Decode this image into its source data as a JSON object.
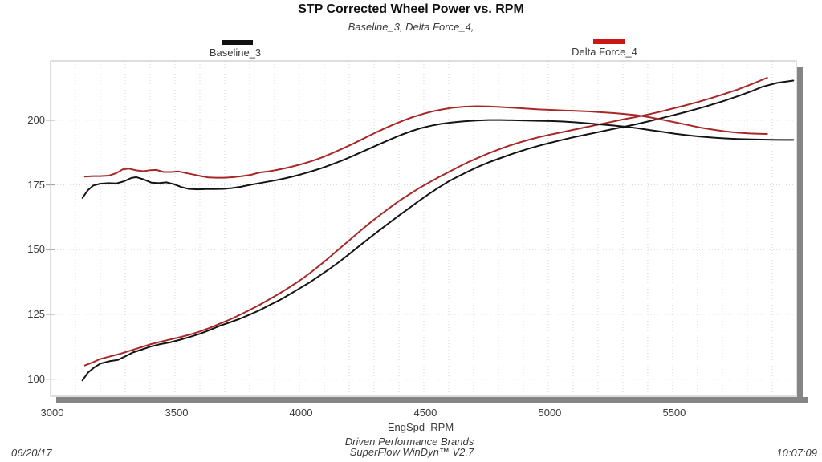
{
  "title": "STP Corrected Wheel Power vs. RPM",
  "subtitle": "Baseline_3, Delta Force_4,",
  "legend": [
    {
      "label": "Baseline_3",
      "color": "#111111"
    },
    {
      "label": "Delta Force_4",
      "color": "#cc1616"
    }
  ],
  "x_axis_label": "EngSpd  RPM",
  "footer": {
    "date": "06/20/17",
    "brand": "Driven Performance Brands",
    "software": "SuperFlow WinDyn™ V2.7",
    "time": "10:07:09"
  },
  "colors": {
    "baseline_curve": "#141414",
    "delta_curve": "#a82828",
    "grid": "#d4d4d4",
    "plot_border": "#bdbdbd",
    "scrollbar": "#858585",
    "tick": "#9a9a9a"
  },
  "chart_data": {
    "type": "line",
    "title": "STP Corrected Wheel Power vs. RPM",
    "subtitle": "Baseline_3, Delta Force_4,",
    "xlabel": "EngSpd  RPM",
    "ylabel": "",
    "xlim": [
      3000,
      5997
    ],
    "ylim": [
      93.4,
      222.9
    ],
    "x_ticks": [
      3000,
      3500,
      4000,
      4500,
      5000,
      5500
    ],
    "y_ticks": [
      100,
      125,
      150,
      175,
      200
    ],
    "x_minor_grid_step": 100,
    "grid": "dotted",
    "legend_position": "top",
    "series": [
      {
        "name": "Baseline_3 (lower trace, power)",
        "color": "#141414",
        "points": [
          [
            3128,
            99.5
          ],
          [
            3150,
            102.5
          ],
          [
            3175,
            104.5
          ],
          [
            3200,
            106
          ],
          [
            3240,
            107
          ],
          [
            3270,
            107.4
          ],
          [
            3300,
            108.8
          ],
          [
            3330,
            110.3
          ],
          [
            3360,
            111.2
          ],
          [
            3400,
            112.5
          ],
          [
            3440,
            113.5
          ],
          [
            3480,
            114.2
          ],
          [
            3520,
            115.2
          ],
          [
            3560,
            116.3
          ],
          [
            3600,
            117.5
          ],
          [
            3640,
            119
          ],
          [
            3680,
            120.6
          ],
          [
            3720,
            121.9
          ],
          [
            3760,
            123.3
          ],
          [
            3800,
            124.9
          ],
          [
            3840,
            126.6
          ],
          [
            3880,
            128.6
          ],
          [
            3920,
            130.5
          ],
          [
            3960,
            132.7
          ],
          [
            4000,
            135
          ],
          [
            4040,
            137.3
          ],
          [
            4080,
            139.9
          ],
          [
            4120,
            142.5
          ],
          [
            4160,
            145.3
          ],
          [
            4200,
            148.3
          ],
          [
            4240,
            151.4
          ],
          [
            4280,
            154.4
          ],
          [
            4320,
            157.4
          ],
          [
            4360,
            160.3
          ],
          [
            4400,
            163.2
          ],
          [
            4440,
            166
          ],
          [
            4480,
            168.8
          ],
          [
            4520,
            171.5
          ],
          [
            4560,
            174
          ],
          [
            4600,
            176.4
          ],
          [
            4640,
            178.4
          ],
          [
            4680,
            180.3
          ],
          [
            4720,
            182.1
          ],
          [
            4760,
            183.7
          ],
          [
            4800,
            185.1
          ],
          [
            4840,
            186.5
          ],
          [
            4880,
            187.8
          ],
          [
            4920,
            189
          ],
          [
            4960,
            190.1
          ],
          [
            5000,
            191.1
          ],
          [
            5050,
            192.3
          ],
          [
            5100,
            193.4
          ],
          [
            5150,
            194.4
          ],
          [
            5200,
            195.4
          ],
          [
            5250,
            196.4
          ],
          [
            5300,
            197.4
          ],
          [
            5350,
            198.4
          ],
          [
            5400,
            199.5
          ],
          [
            5450,
            200.7
          ],
          [
            5500,
            201.9
          ],
          [
            5550,
            203.1
          ],
          [
            5600,
            204.4
          ],
          [
            5650,
            205.8
          ],
          [
            5700,
            207.3
          ],
          [
            5760,
            209.2
          ],
          [
            5820,
            211.3
          ],
          [
            5860,
            212.9
          ],
          [
            5920,
            214.4
          ],
          [
            5985,
            215.3
          ]
        ]
      },
      {
        "name": "Delta Force_4 (lower trace, power)",
        "color": "#a82828",
        "points": [
          [
            3138,
            105.3
          ],
          [
            3170,
            106.5
          ],
          [
            3200,
            107.8
          ],
          [
            3240,
            108.8
          ],
          [
            3280,
            109.8
          ],
          [
            3320,
            111
          ],
          [
            3360,
            112.2
          ],
          [
            3400,
            113.4
          ],
          [
            3440,
            114.4
          ],
          [
            3480,
            115.3
          ],
          [
            3520,
            116.2
          ],
          [
            3560,
            117.2
          ],
          [
            3600,
            118.4
          ],
          [
            3640,
            119.8
          ],
          [
            3680,
            121.4
          ],
          [
            3720,
            123
          ],
          [
            3760,
            124.8
          ],
          [
            3800,
            126.7
          ],
          [
            3840,
            128.7
          ],
          [
            3880,
            130.9
          ],
          [
            3920,
            133.1
          ],
          [
            3960,
            135.5
          ],
          [
            4000,
            138
          ],
          [
            4040,
            140.8
          ],
          [
            4080,
            143.8
          ],
          [
            4120,
            147
          ],
          [
            4160,
            150.3
          ],
          [
            4200,
            153.6
          ],
          [
            4240,
            156.9
          ],
          [
            4280,
            160.1
          ],
          [
            4320,
            163.1
          ],
          [
            4360,
            166
          ],
          [
            4400,
            168.8
          ],
          [
            4440,
            171.3
          ],
          [
            4480,
            173.7
          ],
          [
            4520,
            175.9
          ],
          [
            4560,
            178
          ],
          [
            4600,
            180
          ],
          [
            4640,
            182
          ],
          [
            4680,
            183.9
          ],
          [
            4720,
            185.6
          ],
          [
            4760,
            187.2
          ],
          [
            4800,
            188.7
          ],
          [
            4840,
            190.1
          ],
          [
            4880,
            191.3
          ],
          [
            4920,
            192.4
          ],
          [
            4960,
            193.4
          ],
          [
            5000,
            194.3
          ],
          [
            5050,
            195.3
          ],
          [
            5100,
            196.3
          ],
          [
            5150,
            197.3
          ],
          [
            5200,
            198.3
          ],
          [
            5250,
            199.3
          ],
          [
            5300,
            200.3
          ],
          [
            5350,
            201.2
          ],
          [
            5400,
            202.2
          ],
          [
            5450,
            203.3
          ],
          [
            5500,
            204.5
          ],
          [
            5550,
            205.7
          ],
          [
            5600,
            207
          ],
          [
            5650,
            208.4
          ],
          [
            5700,
            209.9
          ],
          [
            5760,
            211.8
          ],
          [
            5820,
            214
          ],
          [
            5880,
            216.4
          ]
        ]
      },
      {
        "name": "Baseline_3 (upper trace)",
        "color": "#141414",
        "points": [
          [
            3128,
            170
          ],
          [
            3150,
            173
          ],
          [
            3172,
            174.8
          ],
          [
            3200,
            175.5
          ],
          [
            3235,
            175.7
          ],
          [
            3265,
            175.6
          ],
          [
            3295,
            176.4
          ],
          [
            3325,
            177.7
          ],
          [
            3345,
            178
          ],
          [
            3375,
            177.1
          ],
          [
            3405,
            175.9
          ],
          [
            3435,
            175.7
          ],
          [
            3465,
            176
          ],
          [
            3495,
            175.3
          ],
          [
            3525,
            174.2
          ],
          [
            3555,
            173.5
          ],
          [
            3590,
            173.3
          ],
          [
            3625,
            173.4
          ],
          [
            3660,
            173.4
          ],
          [
            3695,
            173.5
          ],
          [
            3730,
            173.8
          ],
          [
            3765,
            174.3
          ],
          [
            3800,
            175
          ],
          [
            3835,
            175.6
          ],
          [
            3870,
            176.2
          ],
          [
            3905,
            176.8
          ],
          [
            3940,
            177.5
          ],
          [
            3975,
            178.3
          ],
          [
            4010,
            179.2
          ],
          [
            4050,
            180.3
          ],
          [
            4090,
            181.5
          ],
          [
            4130,
            182.9
          ],
          [
            4170,
            184.4
          ],
          [
            4210,
            186
          ],
          [
            4250,
            187.7
          ],
          [
            4290,
            189.4
          ],
          [
            4330,
            191.1
          ],
          [
            4370,
            192.8
          ],
          [
            4410,
            194.4
          ],
          [
            4450,
            195.8
          ],
          [
            4490,
            197
          ],
          [
            4530,
            197.9
          ],
          [
            4570,
            198.6
          ],
          [
            4610,
            199.1
          ],
          [
            4660,
            199.6
          ],
          [
            4710,
            199.9
          ],
          [
            4760,
            200.1
          ],
          [
            4810,
            200.1
          ],
          [
            4860,
            200
          ],
          [
            4910,
            199.9
          ],
          [
            4960,
            199.8
          ],
          [
            5010,
            199.7
          ],
          [
            5060,
            199.5
          ],
          [
            5110,
            199.2
          ],
          [
            5160,
            198.8
          ],
          [
            5210,
            198.4
          ],
          [
            5260,
            198
          ],
          [
            5310,
            197.5
          ],
          [
            5360,
            196.9
          ],
          [
            5410,
            196.2
          ],
          [
            5460,
            195.5
          ],
          [
            5510,
            194.8
          ],
          [
            5560,
            194.2
          ],
          [
            5610,
            193.7
          ],
          [
            5660,
            193.3
          ],
          [
            5710,
            193
          ],
          [
            5760,
            192.8
          ],
          [
            5820,
            192.6
          ],
          [
            5880,
            192.5
          ],
          [
            5930,
            192.4
          ],
          [
            5985,
            192.4
          ]
        ]
      },
      {
        "name": "Delta Force_4 (upper trace)",
        "color": "#a82828",
        "points": [
          [
            3138,
            178.2
          ],
          [
            3170,
            178.4
          ],
          [
            3200,
            178.4
          ],
          [
            3235,
            178.6
          ],
          [
            3265,
            179.6
          ],
          [
            3290,
            181
          ],
          [
            3315,
            181.3
          ],
          [
            3345,
            180.6
          ],
          [
            3375,
            180.3
          ],
          [
            3400,
            180.7
          ],
          [
            3425,
            180.8
          ],
          [
            3455,
            180
          ],
          [
            3485,
            180
          ],
          [
            3515,
            180.2
          ],
          [
            3545,
            179.6
          ],
          [
            3575,
            179
          ],
          [
            3605,
            178.4
          ],
          [
            3635,
            177.9
          ],
          [
            3665,
            177.8
          ],
          [
            3700,
            177.8
          ],
          [
            3735,
            178
          ],
          [
            3770,
            178.4
          ],
          [
            3805,
            178.9
          ],
          [
            3840,
            179.8
          ],
          [
            3875,
            180.2
          ],
          [
            3910,
            180.8
          ],
          [
            3945,
            181.5
          ],
          [
            3980,
            182.3
          ],
          [
            4015,
            183.2
          ],
          [
            4055,
            184.4
          ],
          [
            4095,
            185.8
          ],
          [
            4135,
            187.4
          ],
          [
            4175,
            189.1
          ],
          [
            4215,
            190.9
          ],
          [
            4255,
            192.8
          ],
          [
            4295,
            194.7
          ],
          [
            4335,
            196.5
          ],
          [
            4375,
            198.2
          ],
          [
            4415,
            199.8
          ],
          [
            4455,
            201.2
          ],
          [
            4495,
            202.4
          ],
          [
            4535,
            203.4
          ],
          [
            4575,
            204.2
          ],
          [
            4615,
            204.8
          ],
          [
            4660,
            205.2
          ],
          [
            4710,
            205.4
          ],
          [
            4760,
            205.3
          ],
          [
            4810,
            205.1
          ],
          [
            4860,
            204.8
          ],
          [
            4910,
            204.5
          ],
          [
            4960,
            204.2
          ],
          [
            5010,
            204
          ],
          [
            5060,
            203.8
          ],
          [
            5110,
            203.6
          ],
          [
            5160,
            203.4
          ],
          [
            5210,
            203.1
          ],
          [
            5260,
            202.8
          ],
          [
            5310,
            202.4
          ],
          [
            5360,
            201.9
          ],
          [
            5410,
            201.1
          ],
          [
            5460,
            200.2
          ],
          [
            5510,
            199.2
          ],
          [
            5560,
            198.2
          ],
          [
            5610,
            197.2
          ],
          [
            5660,
            196.4
          ],
          [
            5710,
            195.7
          ],
          [
            5760,
            195.2
          ],
          [
            5810,
            194.9
          ],
          [
            5845,
            194.8
          ],
          [
            5880,
            194.7
          ]
        ]
      }
    ]
  }
}
